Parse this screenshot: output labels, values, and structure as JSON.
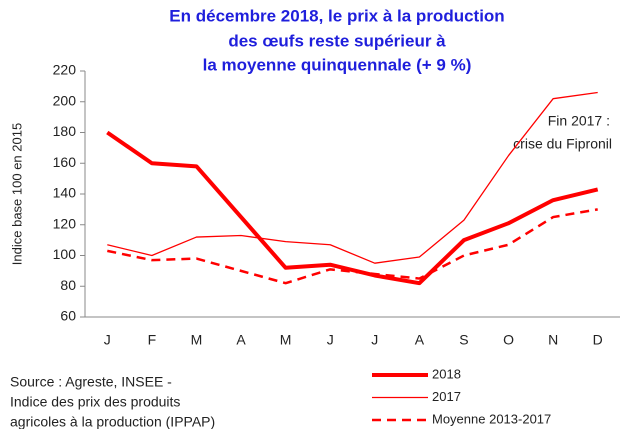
{
  "chart_data": {
    "type": "line",
    "title": [
      "En décembre 2018,  le prix à la production",
      "des œufs reste supérieur à",
      "la moyenne quinquennale (+ 9 %)"
    ],
    "y_label": "Indice base 100 en 2015",
    "annotation": [
      "Fin 2017 :",
      "crise du Fipronil"
    ],
    "source": [
      "Source : Agreste, INSEE -",
      "Indice des prix des produits",
      "agricoles à la production (IPPAP)"
    ],
    "categories": [
      "J",
      "F",
      "M",
      "A",
      "M",
      "J",
      "J",
      "A",
      "S",
      "O",
      "N",
      "D"
    ],
    "series": [
      {
        "name": "2018",
        "color": "#ff0000",
        "style": "thick",
        "values": [
          180,
          160,
          158,
          125,
          92,
          94,
          87,
          82,
          110,
          121,
          136,
          143
        ]
      },
      {
        "name": "2017",
        "color": "#ff0000",
        "style": "thin",
        "values": [
          107,
          100,
          112,
          113,
          109,
          107,
          95,
          99,
          123,
          165,
          202,
          206
        ]
      },
      {
        "name": "Moyenne 2013-2017",
        "color": "#ff0000",
        "style": "dashed",
        "values": [
          103,
          97,
          98,
          90,
          82,
          91,
          88,
          85,
          100,
          107,
          125,
          130
        ]
      }
    ],
    "ylim": [
      60,
      220
    ],
    "yticks": [
      60,
      80,
      100,
      120,
      140,
      160,
      180,
      200,
      220
    ],
    "grid": false
  }
}
